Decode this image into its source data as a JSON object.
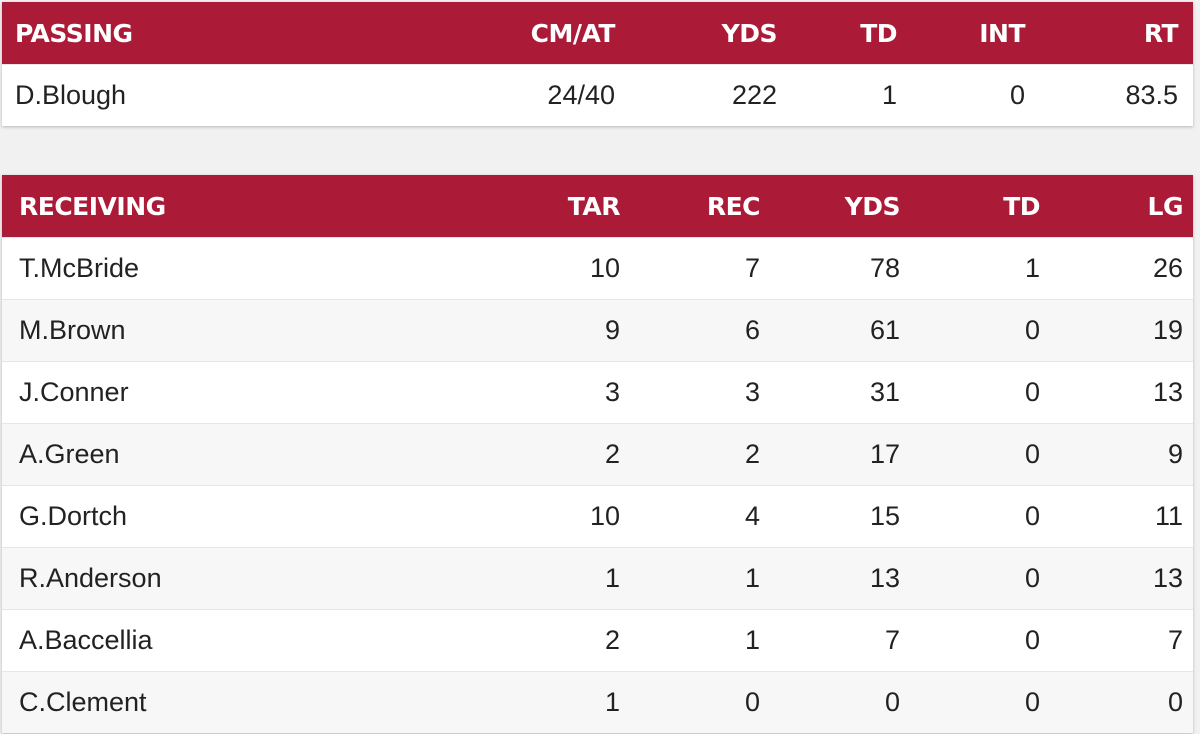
{
  "passing": {
    "headers": {
      "name": "PASSING",
      "cmat": "CM/AT",
      "yds": "YDS",
      "td": "TD",
      "int": "INT",
      "rt": "RT"
    },
    "rows": [
      {
        "player": "D.Blough",
        "cmat": "24/40",
        "yds": "222",
        "td": "1",
        "int": "0",
        "rt": "83.5"
      }
    ]
  },
  "receiving": {
    "headers": {
      "name": "RECEIVING",
      "tar": "TAR",
      "rec": "REC",
      "yds": "YDS",
      "td": "TD",
      "lg": "LG"
    },
    "rows": [
      {
        "player": "T.McBride",
        "tar": "10",
        "rec": "7",
        "yds": "78",
        "td": "1",
        "lg": "26"
      },
      {
        "player": "M.Brown",
        "tar": "9",
        "rec": "6",
        "yds": "61",
        "td": "0",
        "lg": "19"
      },
      {
        "player": "J.Conner",
        "tar": "3",
        "rec": "3",
        "yds": "31",
        "td": "0",
        "lg": "13"
      },
      {
        "player": "A.Green",
        "tar": "2",
        "rec": "2",
        "yds": "17",
        "td": "0",
        "lg": "9"
      },
      {
        "player": "G.Dortch",
        "tar": "10",
        "rec": "4",
        "yds": "15",
        "td": "0",
        "lg": "11"
      },
      {
        "player": "R.Anderson",
        "tar": "1",
        "rec": "1",
        "yds": "13",
        "td": "0",
        "lg": "13"
      },
      {
        "player": "A.Baccellia",
        "tar": "2",
        "rec": "1",
        "yds": "7",
        "td": "0",
        "lg": "7"
      },
      {
        "player": "C.Clement",
        "tar": "1",
        "rec": "0",
        "yds": "0",
        "td": "0",
        "lg": "0"
      }
    ]
  },
  "colors": {
    "header_background": "#ab1a37",
    "header_text": "#ffffff",
    "row_background": "#ffffff",
    "row_alt_background": "#f7f7f7",
    "page_background": "#f1f1f1"
  }
}
